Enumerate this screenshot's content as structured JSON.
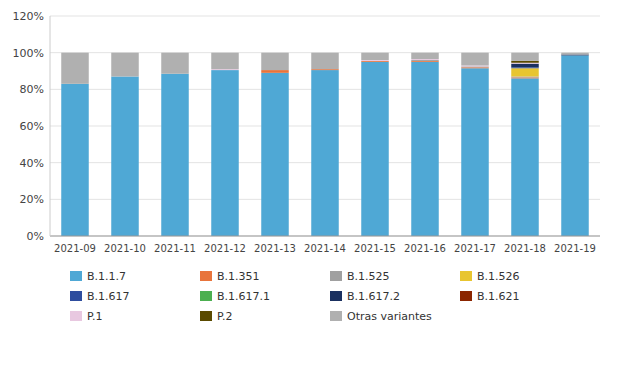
{
  "chart_data": {
    "type": "bar",
    "stacked": true,
    "grid": true,
    "legend": "bottom",
    "categories": [
      "2021-09",
      "2021-10",
      "2021-11",
      "2021-12",
      "2021-13",
      "2021-14",
      "2021-15",
      "2021-16",
      "2021-17",
      "2021-18",
      "2021-19"
    ],
    "series": [
      {
        "name": "B.1.1.7",
        "color": "#4fa8d5",
        "values": [
          83.0,
          87.0,
          88.5,
          90.5,
          89.0,
          90.5,
          95.0,
          95.0,
          91.5,
          86.0,
          98.5
        ]
      },
      {
        "name": "B.1.351",
        "color": "#e8743b",
        "values": [
          0.0,
          0.0,
          0.0,
          0.0,
          1.5,
          0.5,
          0.5,
          0.5,
          0.5,
          0.5,
          0.0
        ]
      },
      {
        "name": "B.1.525",
        "color": "#a0a0a0",
        "values": [
          0.0,
          0.0,
          0.0,
          0.0,
          0.0,
          0.0,
          0.0,
          0.5,
          0.5,
          0.5,
          0.0
        ]
      },
      {
        "name": "B.1.526",
        "color": "#e8c530",
        "values": [
          0.0,
          0.0,
          0.0,
          0.0,
          0.0,
          0.0,
          0.0,
          0.0,
          0.0,
          4.5,
          0.0
        ]
      },
      {
        "name": "B.1.617",
        "color": "#2e4d9e",
        "values": [
          0.0,
          0.0,
          0.0,
          0.0,
          0.0,
          0.0,
          0.0,
          0.0,
          0.0,
          0.5,
          0.0
        ]
      },
      {
        "name": "B.1.617.1",
        "color": "#4caf50",
        "values": [
          0.0,
          0.0,
          0.0,
          0.0,
          0.0,
          0.0,
          0.0,
          0.0,
          0.0,
          0.0,
          0.0
        ]
      },
      {
        "name": "B.1.617.2",
        "color": "#1a3060",
        "values": [
          0.0,
          0.0,
          0.0,
          0.0,
          0.0,
          0.0,
          0.0,
          0.0,
          0.0,
          2.0,
          0.5
        ]
      },
      {
        "name": "B.1.621",
        "color": "#8b2500",
        "values": [
          0.0,
          0.0,
          0.0,
          0.0,
          0.0,
          0.0,
          0.0,
          0.0,
          0.0,
          0.0,
          0.0
        ]
      },
      {
        "name": "P.1",
        "color": "#e8c8e0",
        "values": [
          0.0,
          0.0,
          0.0,
          0.5,
          0.0,
          0.0,
          0.5,
          0.5,
          0.5,
          0.5,
          0.0
        ]
      },
      {
        "name": "P.2",
        "color": "#5a4a00",
        "values": [
          0.0,
          0.0,
          0.0,
          0.0,
          0.0,
          0.0,
          0.0,
          0.0,
          0.0,
          1.0,
          0.0
        ]
      },
      {
        "name": "Otras variantes",
        "color": "#b0b0b0",
        "values": [
          17.0,
          13.0,
          11.5,
          9.0,
          9.5,
          9.0,
          4.0,
          3.5,
          7.0,
          4.5,
          1.0
        ]
      }
    ],
    "ylim": [
      0,
      120
    ],
    "yticks": [
      {
        "value": 0,
        "label": "0%"
      },
      {
        "value": 20,
        "label": "20%"
      },
      {
        "value": 40,
        "label": "40%"
      },
      {
        "value": 60,
        "label": "60%"
      },
      {
        "value": 80,
        "label": "80%"
      },
      {
        "value": 100,
        "label": "100%"
      },
      {
        "value": 120,
        "label": "120%"
      }
    ]
  }
}
